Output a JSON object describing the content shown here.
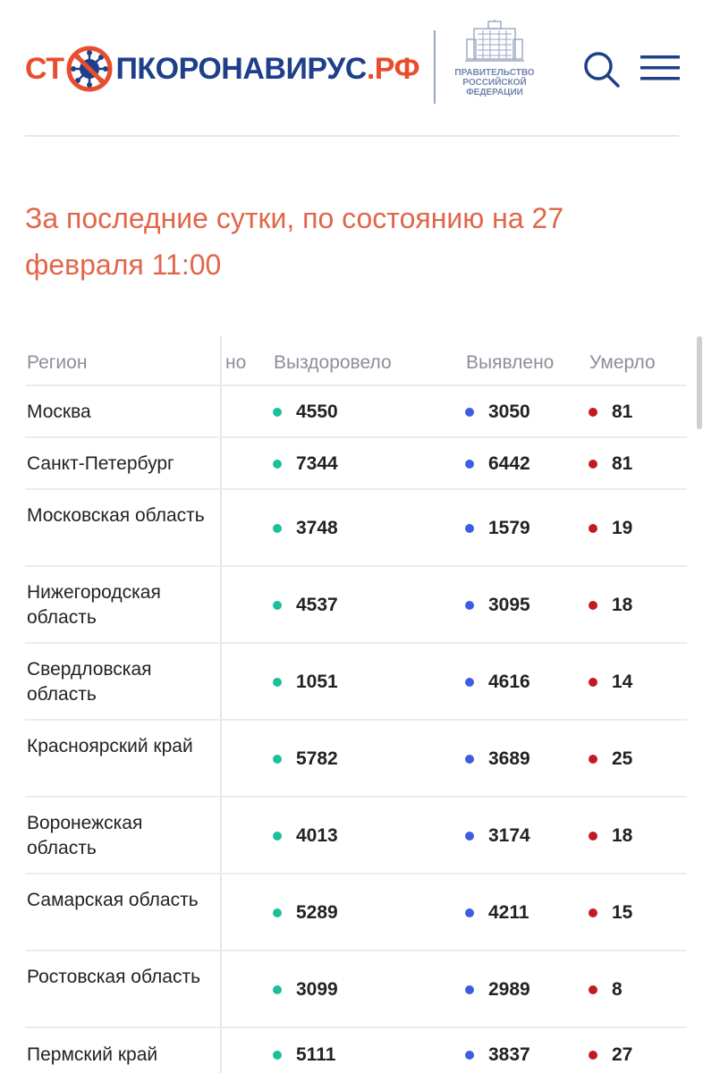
{
  "header": {
    "logo": {
      "part1": "СТ",
      "part2": "ПКОРОНАВИРУС",
      "part3": ".РФ",
      "virus_icon": "virus-stop-icon"
    },
    "gov": {
      "line1": "ПРАВИТЕЛЬСТВО",
      "line2": "РОССИЙСКОЙ",
      "line3": "ФЕДЕРАЦИИ",
      "icon": "government-building-icon"
    },
    "search_icon": "search-icon",
    "menu_icon": "hamburger-menu-icon"
  },
  "title": "За последние сутки, по состоянию на 27 февраля 11:00",
  "table": {
    "headers": {
      "region": "Регион",
      "partial": "но",
      "recovered": "Выздоровело",
      "detected": "Выявлено",
      "died": "Умерло"
    },
    "rows": [
      {
        "region": "Москва",
        "recovered": "4550",
        "detected": "3050",
        "died": "81"
      },
      {
        "region": "Санкт-Петербург",
        "recovered": "7344",
        "detected": "6442",
        "died": "81"
      },
      {
        "region": "Московская область",
        "recovered": "3748",
        "detected": "1579",
        "died": "19"
      },
      {
        "region": "Нижегородская область",
        "recovered": "4537",
        "detected": "3095",
        "died": "18"
      },
      {
        "region": "Свердловская область",
        "recovered": "1051",
        "detected": "4616",
        "died": "14"
      },
      {
        "region": "Красноярский край",
        "recovered": "5782",
        "detected": "3689",
        "died": "25"
      },
      {
        "region": "Воронежская область",
        "recovered": "4013",
        "detected": "3174",
        "died": "18"
      },
      {
        "region": "Самарская область",
        "recovered": "5289",
        "detected": "4211",
        "died": "15"
      },
      {
        "region": "Ростовская область",
        "recovered": "3099",
        "detected": "2989",
        "died": "8"
      },
      {
        "region": "Пермский край",
        "recovered": "5111",
        "detected": "3837",
        "died": "27"
      }
    ]
  },
  "colors": {
    "accent_orange": "#e84e2c",
    "brand_blue": "#1e3f8a",
    "recovered": "#1dbf9a",
    "detected": "#3d5de0",
    "died": "#c21a25"
  }
}
